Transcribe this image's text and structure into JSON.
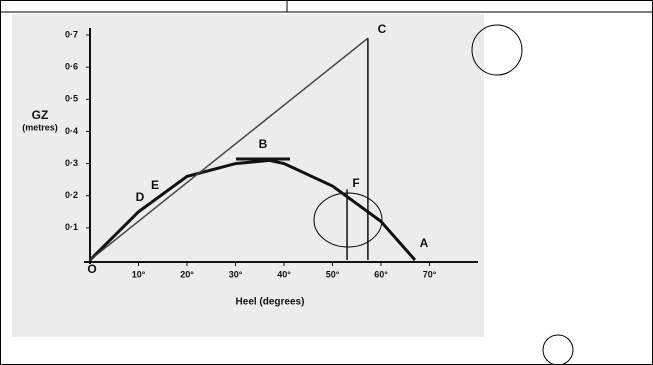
{
  "chart_data": {
    "type": "line",
    "y_label": "GZ",
    "y_unit": "(metres)",
    "x_label": "Heel (degrees)",
    "xlim": [
      0,
      80
    ],
    "ylim": [
      0,
      0.7
    ],
    "xticks": [
      {
        "value": 10,
        "label": "10°"
      },
      {
        "value": 20,
        "label": "20°"
      },
      {
        "value": 30,
        "label": "30°"
      },
      {
        "value": 40,
        "label": "40°"
      },
      {
        "value": 50,
        "label": "50°"
      },
      {
        "value": 60,
        "label": "60°"
      },
      {
        "value": 70,
        "label": "70°"
      }
    ],
    "yticks": [
      {
        "value": 0.1,
        "label": "0·1"
      },
      {
        "value": 0.2,
        "label": "0·2"
      },
      {
        "value": 0.3,
        "label": "0·3"
      },
      {
        "value": 0.4,
        "label": "0·4"
      },
      {
        "value": 0.5,
        "label": "0·5"
      },
      {
        "value": 0.6,
        "label": "0·6"
      },
      {
        "value": 0.7,
        "label": "0·7"
      }
    ],
    "series": [
      {
        "color": "#111",
        "x": [
          0,
          10,
          20,
          30,
          37,
          40,
          50,
          60,
          67
        ],
        "values": [
          0,
          0.15,
          0.26,
          0.3,
          0.31,
          0.3,
          0.23,
          0.12,
          0
        ]
      },
      {
        "color": "#444",
        "x": [
          0,
          57.3
        ],
        "values": [
          0,
          0.69
        ]
      },
      {
        "color": "#111",
        "x": [
          57.3,
          57.3
        ],
        "values": [
          0,
          0.69
        ]
      },
      {
        "color": "#111",
        "x": [
          53,
          53
        ],
        "values": [
          0,
          0.22
        ]
      }
    ],
    "annotations": [
      "O",
      "D",
      "E",
      "B",
      "C",
      "F",
      "A"
    ]
  }
}
